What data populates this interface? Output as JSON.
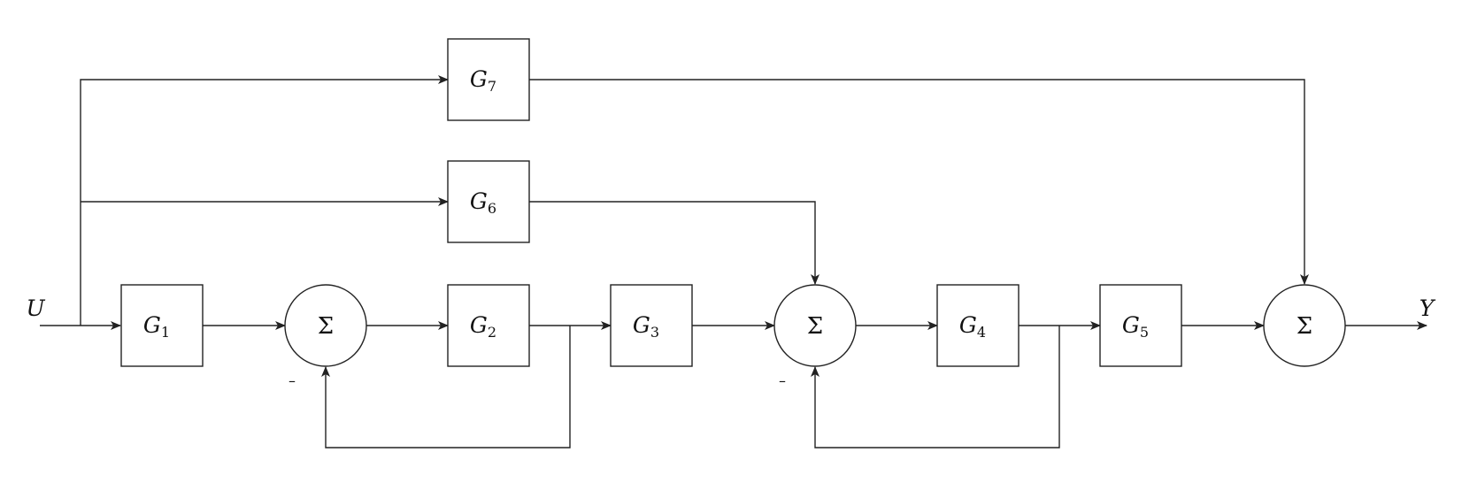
{
  "signals": {
    "input": "U",
    "output": "Y"
  },
  "blocks": [
    {
      "id": "g1",
      "name": "G",
      "sub": "1"
    },
    {
      "id": "g2",
      "name": "G",
      "sub": "2"
    },
    {
      "id": "g3",
      "name": "G",
      "sub": "3"
    },
    {
      "id": "g4",
      "name": "G",
      "sub": "4"
    },
    {
      "id": "g5",
      "name": "G",
      "sub": "5"
    },
    {
      "id": "g6",
      "name": "G",
      "sub": "6"
    },
    {
      "id": "g7",
      "name": "G",
      "sub": "7"
    }
  ],
  "summing_junctions": [
    {
      "id": "s1",
      "symbol": "Σ",
      "negative_sign": "–"
    },
    {
      "id": "s2",
      "symbol": "Σ",
      "negative_sign": "–"
    },
    {
      "id": "s3",
      "symbol": "Σ"
    }
  ]
}
